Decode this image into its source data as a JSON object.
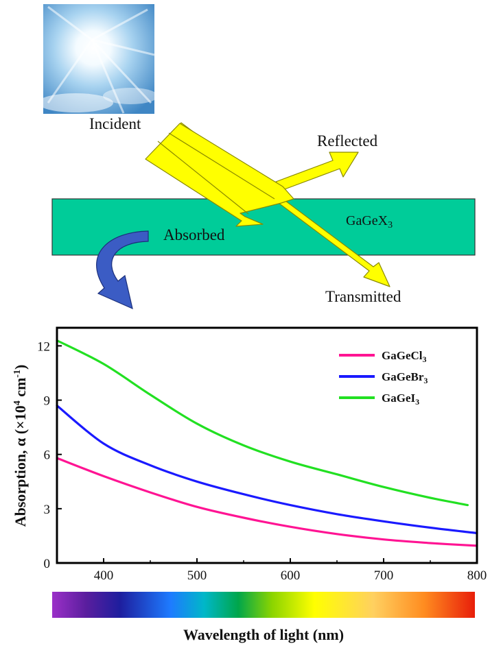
{
  "diagram": {
    "labels": {
      "incident": "Incident",
      "reflected": "Reflected",
      "absorbed": "Absorbed",
      "transmitted": "Transmitted",
      "material": "GaGeX",
      "material_sub": "3"
    },
    "colors": {
      "slab": "#00CC99",
      "beam": "#FFFF00",
      "beam_edge": "#8A8A00",
      "curve_arrow": "#3B5CC4"
    }
  },
  "chart_data": {
    "type": "line",
    "ylabel": "Absorption, α (×10",
    "ylabel_sup": "4",
    "ylabel_unit": " cm",
    "ylabel_sup2": "-1",
    "ylabel_close": ")",
    "xlabel": "Wavelength of light (nm)",
    "xlim": [
      350,
      800
    ],
    "ylim": [
      0,
      13
    ],
    "xticks": [
      "400",
      "500",
      "600",
      "700",
      "800"
    ],
    "yticks": [
      "0",
      "3",
      "6",
      "9",
      "12"
    ],
    "legend_position": "top-right",
    "grid": false,
    "series": [
      {
        "name": "GaGeCl",
        "name_sub": "3",
        "color": "#FF1493",
        "x": [
          350,
          400,
          450,
          500,
          550,
          600,
          650,
          700,
          750,
          800
        ],
        "y": [
          5.8,
          4.8,
          3.9,
          3.1,
          2.5,
          2.0,
          1.6,
          1.3,
          1.1,
          0.95
        ]
      },
      {
        "name": "GaGeBr",
        "name_sub": "3",
        "color": "#1A1AFF",
        "x": [
          350,
          400,
          450,
          500,
          550,
          600,
          650,
          700,
          750,
          800
        ],
        "y": [
          8.7,
          6.6,
          5.4,
          4.5,
          3.8,
          3.2,
          2.7,
          2.3,
          1.95,
          1.65
        ]
      },
      {
        "name": "GaGeI",
        "name_sub": "3",
        "color": "#22E022",
        "x": [
          350,
          400,
          450,
          500,
          550,
          600,
          650,
          700,
          750,
          790
        ],
        "y": [
          12.3,
          11.0,
          9.3,
          7.7,
          6.5,
          5.6,
          4.9,
          4.2,
          3.6,
          3.2
        ]
      }
    ]
  }
}
